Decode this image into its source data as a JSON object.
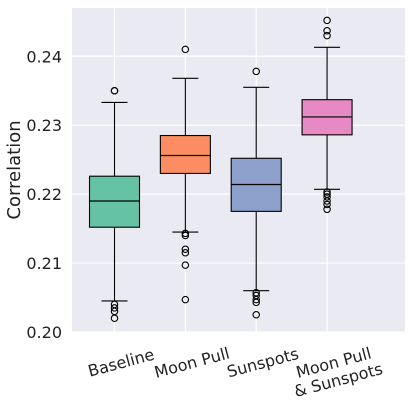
{
  "chart_data": {
    "type": "box",
    "title": "",
    "xlabel": "",
    "ylabel": "Correlation",
    "ylim": [
      0.2,
      0.247
    ],
    "yticks": [
      "0.20",
      "0.21",
      "0.22",
      "0.23",
      "0.24"
    ],
    "grid": true,
    "background": "#EAEAF2",
    "categories": [
      {
        "label_lines": [
          "Baseline"
        ],
        "color": "#66C2A5",
        "whisker_low": 0.2045,
        "q1": 0.2152,
        "median": 0.219,
        "q3": 0.2226,
        "whisker_high": 0.2333,
        "outliers": [
          0.235,
          0.235,
          0.204,
          0.2035,
          0.203,
          0.202
        ]
      },
      {
        "label_lines": [
          "Moon Pull"
        ],
        "color": "#FC8D62",
        "whisker_low": 0.2145,
        "q1": 0.223,
        "median": 0.2256,
        "q3": 0.2285,
        "whisker_high": 0.2368,
        "outliers": [
          0.241,
          0.2143,
          0.214,
          0.212,
          0.2115,
          0.2097,
          0.2047
        ]
      },
      {
        "label_lines": [
          "Sunspots"
        ],
        "color": "#8DA0CB",
        "whisker_low": 0.206,
        "q1": 0.2175,
        "median": 0.2214,
        "q3": 0.2252,
        "whisker_high": 0.2355,
        "outliers": [
          0.2378,
          0.2057,
          0.2053,
          0.2047,
          0.2043,
          0.2025
        ]
      },
      {
        "label_lines": [
          "Moon Pull",
          "& Sunspots"
        ],
        "color": "#E78AC3",
        "whisker_low": 0.2207,
        "q1": 0.2286,
        "median": 0.2312,
        "q3": 0.2337,
        "whisker_high": 0.2413,
        "outliers": [
          0.2452,
          0.2437,
          0.243,
          0.2203,
          0.22,
          0.2196,
          0.219,
          0.2185,
          0.2178
        ]
      }
    ]
  }
}
